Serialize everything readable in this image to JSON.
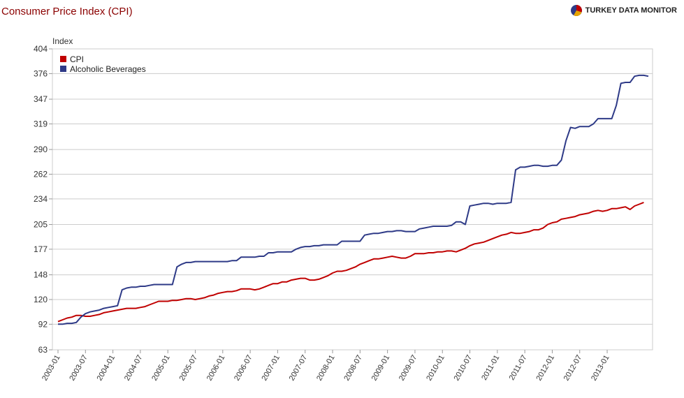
{
  "header": {
    "title": "Consumer Price Index (CPI)",
    "brand": "TURKEY DATA MONITOR"
  },
  "chart_data": {
    "type": "line",
    "title": "Consumer Price Index (CPI)",
    "xlabel": "",
    "ylabel": "Index",
    "yticks": [
      63,
      92,
      120,
      148,
      177,
      205,
      234,
      262,
      290,
      319,
      347,
      376,
      404
    ],
    "ylim": [
      63,
      404
    ],
    "xticks": [
      "2003-01",
      "2003-07",
      "2004-01",
      "2004-07",
      "2005-01",
      "2005-07",
      "2006-01",
      "2006-07",
      "2007-01",
      "2007-07",
      "2008-01",
      "2008-07",
      "2009-01",
      "2009-07",
      "2010-01",
      "2010-07",
      "2011-01",
      "2011-07",
      "2012-01",
      "2012-07",
      "2013-01"
    ],
    "x_start": "2003-01",
    "grid": true,
    "legend": "top-left",
    "series": [
      {
        "name": "CPI",
        "color": "#c00000",
        "values": [
          95,
          97,
          99,
          100,
          102,
          102,
          101,
          101,
          102,
          103,
          105,
          106,
          107,
          108,
          109,
          110,
          110,
          110,
          111,
          112,
          114,
          116,
          118,
          118,
          118,
          119,
          119,
          120,
          121,
          121,
          120,
          121,
          122,
          124,
          125,
          127,
          128,
          129,
          129,
          130,
          132,
          132,
          132,
          131,
          132,
          134,
          136,
          138,
          138,
          140,
          140,
          142,
          143,
          144,
          144,
          142,
          142,
          143,
          145,
          147,
          150,
          152,
          152,
          153,
          155,
          157,
          160,
          162,
          164,
          166,
          166,
          167,
          168,
          169,
          168,
          167,
          167,
          169,
          172,
          172,
          172,
          173,
          173,
          174,
          174,
          175,
          175,
          174,
          176,
          178,
          181,
          183,
          184,
          185,
          187,
          189,
          191,
          193,
          194,
          196,
          195,
          195,
          196,
          197,
          199,
          199,
          201,
          205,
          207,
          208,
          211,
          212,
          213,
          214,
          216,
          217,
          218,
          220,
          221,
          220,
          221,
          223,
          223,
          224,
          225,
          222,
          226,
          228,
          230
        ]
      },
      {
        "name": "Alcoholic Beverages",
        "color": "#2e3a87",
        "values": [
          92,
          92,
          93,
          93,
          94,
          100,
          104,
          106,
          107,
          108,
          110,
          111,
          112,
          113,
          131,
          133,
          134,
          134,
          135,
          135,
          136,
          137,
          137,
          137,
          137,
          137,
          157,
          160,
          162,
          162,
          163,
          163,
          163,
          163,
          163,
          163,
          163,
          163,
          164,
          164,
          168,
          168,
          168,
          168,
          169,
          169,
          173,
          173,
          174,
          174,
          174,
          174,
          177,
          179,
          180,
          180,
          181,
          181,
          182,
          182,
          182,
          182,
          186,
          186,
          186,
          186,
          186,
          193,
          194,
          195,
          195,
          196,
          197,
          197,
          198,
          198,
          197,
          197,
          197,
          200,
          201,
          202,
          203,
          203,
          203,
          203,
          204,
          208,
          208,
          205,
          226,
          227,
          228,
          229,
          229,
          228,
          229,
          229,
          229,
          230,
          267,
          270,
          270,
          271,
          272,
          272,
          271,
          271,
          272,
          272,
          278,
          300,
          315,
          314,
          316,
          316,
          316,
          319,
          325,
          325,
          325,
          325,
          340,
          365,
          366,
          366,
          373,
          374,
          374,
          373
        ]
      }
    ]
  }
}
